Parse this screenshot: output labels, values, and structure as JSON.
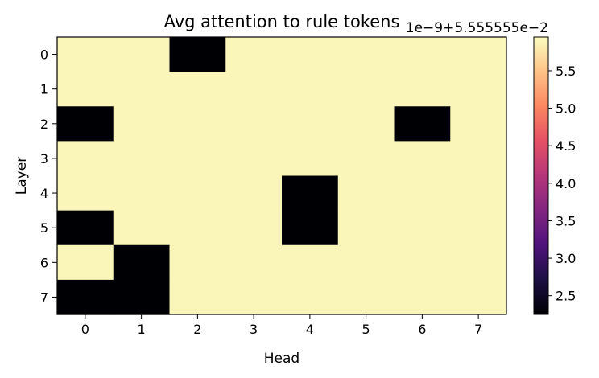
{
  "chart_data": {
    "type": "heatmap",
    "title": "Avg attention to rule tokens",
    "xlabel": "Head",
    "ylabel": "Layer",
    "x_categories": [
      "0",
      "1",
      "2",
      "3",
      "4",
      "5",
      "6",
      "7"
    ],
    "y_categories": [
      "0",
      "1",
      "2",
      "3",
      "4",
      "5",
      "6",
      "7"
    ],
    "colormap": "magma",
    "values": [
      [
        5.9,
        5.9,
        2.25,
        5.9,
        5.9,
        5.9,
        5.9,
        5.9
      ],
      [
        5.9,
        5.9,
        5.9,
        5.9,
        5.9,
        5.9,
        5.9,
        5.9
      ],
      [
        2.25,
        5.9,
        5.9,
        5.9,
        5.9,
        5.9,
        2.25,
        5.9
      ],
      [
        5.9,
        5.9,
        5.9,
        5.9,
        5.9,
        5.9,
        5.9,
        5.9
      ],
      [
        5.9,
        5.9,
        5.9,
        5.9,
        2.25,
        5.9,
        5.9,
        5.9
      ],
      [
        2.25,
        5.9,
        5.9,
        5.9,
        2.25,
        5.9,
        5.9,
        5.9
      ],
      [
        5.9,
        2.25,
        5.9,
        5.9,
        5.9,
        5.9,
        5.9,
        5.9
      ],
      [
        2.25,
        2.25,
        5.9,
        5.9,
        5.9,
        5.9,
        5.9,
        5.9
      ]
    ],
    "colorbar": {
      "min": 2.25,
      "max": 5.95,
      "ticks": [
        2.5,
        3.0,
        3.5,
        4.0,
        4.5,
        5.0,
        5.5
      ],
      "tick_labels": [
        "2.5",
        "3.0",
        "3.5",
        "4.0",
        "4.5",
        "5.0",
        "5.5"
      ],
      "offset_text": "1e−9+5.555555e−2"
    },
    "grid": false
  }
}
